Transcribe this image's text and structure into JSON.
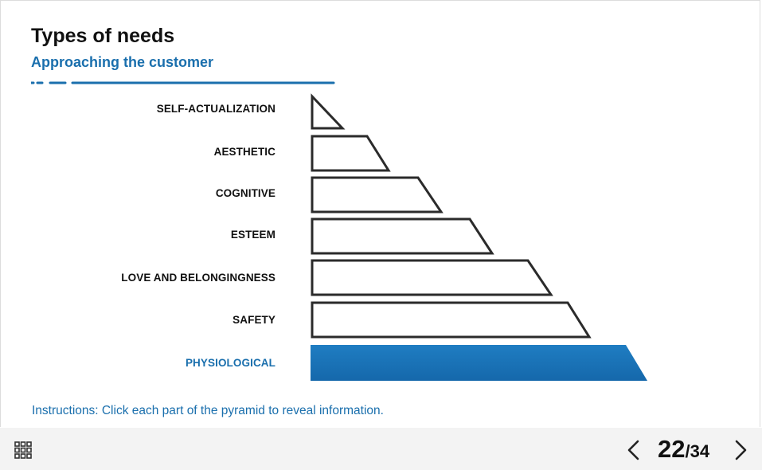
{
  "slide": {
    "title": "Types of needs",
    "subtitle": "Approaching the customer",
    "instructions": "Instructions: Click each part of the pyramid to reveal information."
  },
  "pyramid": {
    "accent_color": "#1a6fad",
    "levels": [
      {
        "label": "SELF-ACTUALIZATION",
        "active": false
      },
      {
        "label": "AESTHETIC",
        "active": false
      },
      {
        "label": "COGNITIVE",
        "active": false
      },
      {
        "label": "ESTEEM",
        "active": false
      },
      {
        "label": "LOVE AND BELONGINGNESS",
        "active": false
      },
      {
        "label": "SAFETY",
        "active": false
      },
      {
        "label": "PHYSIOLOGICAL",
        "active": true
      }
    ]
  },
  "navigation": {
    "current_page": "22",
    "separator_total": "/34",
    "menu_icon": "grid-menu-icon",
    "prev_icon": "chevron-left-icon",
    "next_icon": "chevron-right-icon"
  }
}
